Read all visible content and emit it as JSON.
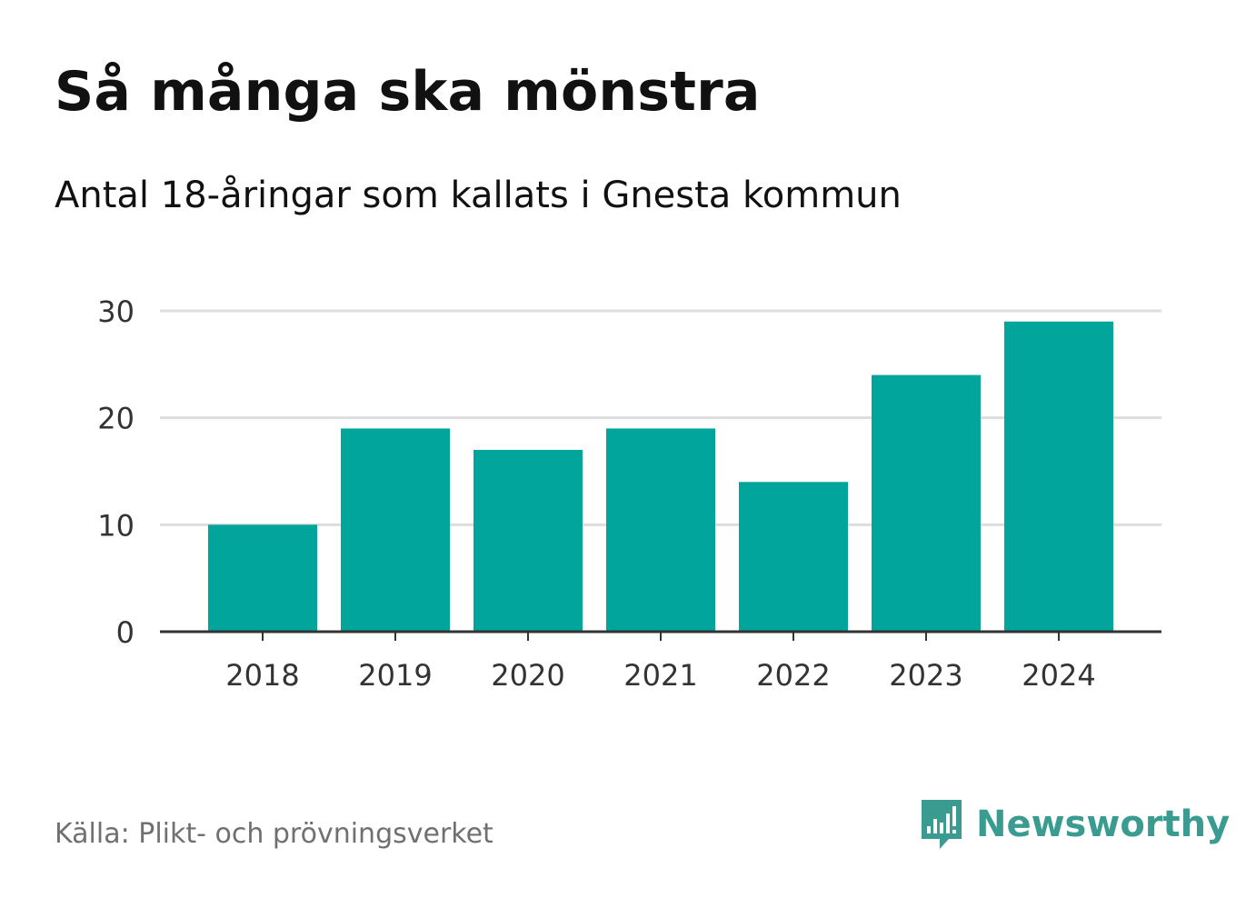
{
  "header": {
    "title": "Så många ska mönstra",
    "subtitle": "Antal 18-åringar som kallats i Gnesta kommun"
  },
  "footer": {
    "source": "Källa: Plikt- och prövningsverket",
    "brand": "Newsworthy"
  },
  "colors": {
    "bar": "#02a59b",
    "grid": "#dddddd",
    "axis": "#333333",
    "brand": "#3a9b90"
  },
  "icons": {
    "brand_logo": "bar-chart-speech-bubble-icon"
  },
  "chart_data": {
    "type": "bar",
    "categories": [
      "2018",
      "2019",
      "2020",
      "2021",
      "2022",
      "2023",
      "2024"
    ],
    "values": [
      10,
      19,
      17,
      19,
      14,
      24,
      29
    ],
    "title": "Så många ska mönstra",
    "subtitle": "Antal 18-åringar som kallats i Gnesta kommun",
    "xlabel": "",
    "ylabel": "",
    "ylim": [
      0,
      30
    ],
    "yticks": [
      0,
      10,
      20,
      30
    ],
    "grid": true
  }
}
